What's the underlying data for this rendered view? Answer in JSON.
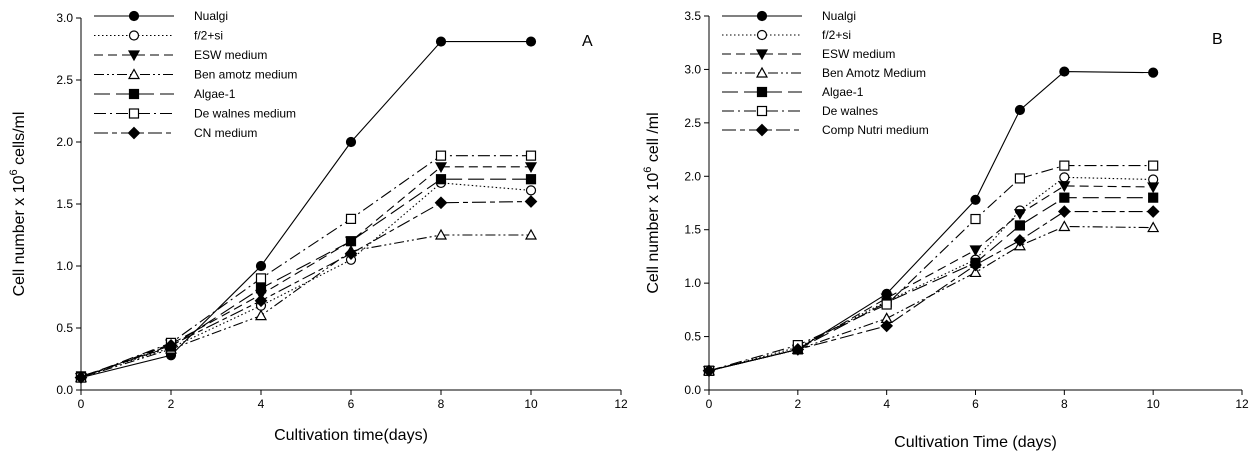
{
  "chart_data": [
    {
      "type": "line",
      "panel_label": "A",
      "xlabel": "Cultivation time(days)",
      "ylabel_pre": "Cell number x 10",
      "ylabel_sup": "6",
      "ylabel_post": " cells/ml",
      "xlim": [
        0,
        12
      ],
      "ylim": [
        0,
        3.0
      ],
      "x_ticks": [
        0,
        2,
        4,
        6,
        8,
        10,
        12
      ],
      "x_tick_labels": [
        "0",
        "2",
        "4",
        "6",
        "8",
        "10",
        "12"
      ],
      "y_ticks": [
        0,
        0.5,
        1.0,
        1.5,
        2.0,
        2.5,
        3.0
      ],
      "y_tick_labels": [
        "0.0",
        "0.5",
        "1.0",
        "1.5",
        "2.0",
        "2.5",
        "3.0"
      ],
      "grid": false,
      "legend_position": "top-left",
      "series": [
        {
          "name": "Nualgi",
          "marker": "circle-filled",
          "dash": "solid",
          "x": [
            0,
            2,
            4,
            6,
            8,
            10
          ],
          "y": [
            0.1,
            0.28,
            1.0,
            2.0,
            2.81,
            2.81
          ]
        },
        {
          "name": "f/2+si",
          "marker": "circle-open",
          "dash": "dotted",
          "x": [
            0,
            2,
            4,
            6,
            8,
            10
          ],
          "y": [
            0.11,
            0.34,
            0.68,
            1.05,
            1.67,
            1.61
          ]
        },
        {
          "name": "ESW medium",
          "marker": "triangle-down-filled",
          "dash": "dashed",
          "x": [
            0,
            2,
            4,
            6,
            8,
            10
          ],
          "y": [
            0.1,
            0.37,
            0.77,
            1.2,
            1.8,
            1.8
          ]
        },
        {
          "name": "Ben amotz medium",
          "marker": "triangle-up-open",
          "dash": "dash-dot-dot",
          "x": [
            0,
            2,
            4,
            6,
            8,
            10
          ],
          "y": [
            0.1,
            0.33,
            0.6,
            1.12,
            1.25,
            1.25
          ]
        },
        {
          "name": "Algae-1",
          "marker": "square-filled",
          "dash": "long-dash",
          "x": [
            0,
            2,
            4,
            6,
            8,
            10
          ],
          "y": [
            0.11,
            0.35,
            0.82,
            1.2,
            1.7,
            1.7
          ]
        },
        {
          "name": "De walnes medium",
          "marker": "square-open",
          "dash": "dash-dot",
          "x": [
            0,
            2,
            4,
            6,
            8,
            10
          ],
          "y": [
            0.1,
            0.38,
            0.9,
            1.38,
            1.89,
            1.89
          ]
        },
        {
          "name": "CN medium",
          "marker": "diamond-filled",
          "dash": "long-short",
          "x": [
            0,
            2,
            4,
            6,
            8,
            10
          ],
          "y": [
            0.1,
            0.36,
            0.72,
            1.1,
            1.51,
            1.52
          ]
        }
      ]
    },
    {
      "type": "line",
      "panel_label": "B",
      "xlabel": "Cultivation Time (days)",
      "ylabel_pre": "Cell number x 10",
      "ylabel_sup": "6",
      "ylabel_post": " cell /ml",
      "xlim": [
        0,
        12
      ],
      "ylim": [
        0,
        3.5
      ],
      "x_ticks": [
        0,
        2,
        4,
        6,
        8,
        10,
        12
      ],
      "x_tick_labels": [
        "0",
        "2",
        "4",
        "6",
        "8",
        "10",
        "12"
      ],
      "y_ticks": [
        0,
        0.5,
        1.0,
        1.5,
        2.0,
        2.5,
        3.0,
        3.5
      ],
      "y_tick_labels": [
        "0.0",
        "0.5",
        "1.0",
        "1.5",
        "2.0",
        "2.5",
        "3.0",
        "3.5"
      ],
      "grid": false,
      "legend_position": "top-left",
      "series": [
        {
          "name": "Nualgi",
          "marker": "circle-filled",
          "dash": "solid",
          "x": [
            0,
            2,
            4,
            6,
            7,
            8,
            10
          ],
          "y": [
            0.18,
            0.38,
            0.9,
            1.78,
            2.62,
            2.98,
            2.97
          ]
        },
        {
          "name": "f/2+si",
          "marker": "circle-open",
          "dash": "dotted",
          "x": [
            0,
            2,
            4,
            6,
            7,
            8,
            10
          ],
          "y": [
            0.18,
            0.4,
            0.83,
            1.22,
            1.68,
            1.99,
            1.97
          ]
        },
        {
          "name": "ESW medium",
          "marker": "triangle-down-filled",
          "dash": "dashed",
          "x": [
            0,
            2,
            4,
            6,
            7,
            8,
            10
          ],
          "y": [
            0.18,
            0.38,
            0.86,
            1.31,
            1.65,
            1.91,
            1.9
          ]
        },
        {
          "name": "Ben Amotz Medium",
          "marker": "triangle-up-open",
          "dash": "dash-dot-dot",
          "x": [
            0,
            2,
            4,
            6,
            7,
            8,
            10
          ],
          "y": [
            0.18,
            0.38,
            0.67,
            1.1,
            1.35,
            1.53,
            1.52
          ]
        },
        {
          "name": "Algae-1",
          "marker": "square-filled",
          "dash": "long-dash",
          "x": [
            0,
            2,
            4,
            6,
            7,
            8,
            10
          ],
          "y": [
            0.18,
            0.38,
            0.82,
            1.19,
            1.54,
            1.8,
            1.8
          ]
        },
        {
          "name": "De walnes",
          "marker": "square-open",
          "dash": "dash-dot",
          "x": [
            0,
            2,
            4,
            6,
            7,
            8,
            10
          ],
          "y": [
            0.18,
            0.42,
            0.8,
            1.6,
            1.98,
            2.1,
            2.1
          ]
        },
        {
          "name": "Comp Nutri medium",
          "marker": "diamond-filled",
          "dash": "long-short",
          "x": [
            0,
            2,
            4,
            6,
            7,
            8,
            10
          ],
          "y": [
            0.18,
            0.38,
            0.6,
            1.17,
            1.4,
            1.67,
            1.67
          ]
        }
      ]
    }
  ]
}
